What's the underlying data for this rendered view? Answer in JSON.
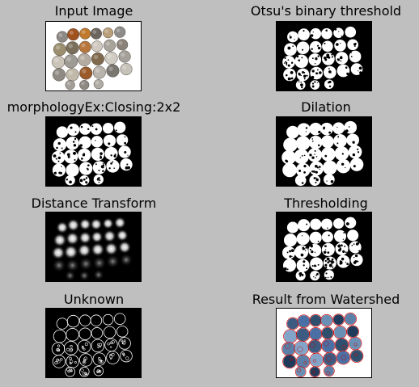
{
  "panels": [
    {
      "title": "Input Image"
    },
    {
      "title": "Otsu's binary threshold"
    },
    {
      "title": "morphologyEx:Closing:2x2"
    },
    {
      "title": "Dilation"
    },
    {
      "title": "Distance Transform"
    },
    {
      "title": "Thresholding"
    },
    {
      "title": "Unknown"
    },
    {
      "title": "Result from Watershed"
    }
  ],
  "colors": {
    "background": "#bfbfbf",
    "binary_bg": "#000000",
    "binary_fg": "#ffffff",
    "watershed_boundary": "#cc0000"
  }
}
